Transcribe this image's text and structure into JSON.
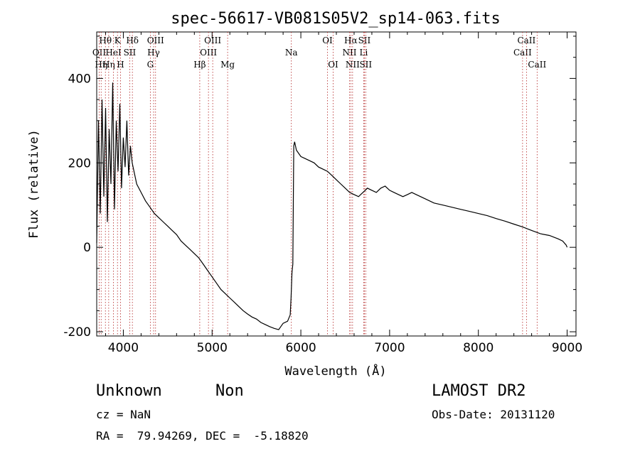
{
  "chart_data": {
    "type": "line",
    "title": "spec-56617-VB081S05V2_sp14-063.fits",
    "xlabel": "Wavelength (Å)",
    "ylabel": "Flux (relative)",
    "xlim": [
      3700,
      9100
    ],
    "ylim": [
      -210,
      510
    ],
    "xticks": [
      4000,
      5000,
      6000,
      7000,
      8000,
      9000
    ],
    "yticks": [
      -200,
      0,
      200,
      400
    ],
    "line_color": "#000000",
    "marker_color": "#b22222",
    "series": [
      {
        "x": [
          3700,
          3720,
          3740,
          3760,
          3780,
          3800,
          3820,
          3840,
          3860,
          3880,
          3900,
          3920,
          3940,
          3960,
          3980,
          4000,
          4020,
          4040,
          4060,
          4080,
          4100,
          4150,
          4200,
          4250,
          4300,
          4350,
          4400,
          4450,
          4500,
          4550,
          4600,
          4650,
          4700,
          4750,
          4800,
          4850,
          4900,
          4950,
          5000,
          5050,
          5100,
          5150,
          5200,
          5250,
          5300,
          5350,
          5400,
          5450,
          5500,
          5550,
          5600,
          5650,
          5700,
          5750,
          5800,
          5850,
          5880,
          5890,
          5900,
          5910,
          5920,
          5930,
          5950,
          6000,
          6050,
          6100,
          6150,
          6200,
          6250,
          6300,
          6350,
          6400,
          6450,
          6500,
          6550,
          6600,
          6650,
          6700,
          6750,
          6800,
          6850,
          6900,
          6950,
          7000,
          7050,
          7100,
          7150,
          7200,
          7250,
          7300,
          7400,
          7500,
          7600,
          7700,
          7800,
          7900,
          8000,
          8100,
          8200,
          8300,
          8400,
          8500,
          8600,
          8700,
          8800,
          8900,
          8950,
          8990,
          9000
        ],
        "y": [
          10,
          300,
          80,
          350,
          120,
          330,
          60,
          280,
          150,
          390,
          90,
          300,
          180,
          340,
          140,
          260,
          190,
          300,
          170,
          240,
          200,
          150,
          130,
          110,
          95,
          80,
          70,
          60,
          50,
          40,
          30,
          15,
          5,
          -5,
          -15,
          -25,
          -40,
          -55,
          -70,
          -85,
          -100,
          -110,
          -120,
          -130,
          -140,
          -150,
          -158,
          -165,
          -170,
          -178,
          -183,
          -188,
          -192,
          -195,
          -180,
          -175,
          -160,
          -120,
          -60,
          -40,
          240,
          250,
          230,
          215,
          210,
          205,
          200,
          190,
          185,
          180,
          170,
          160,
          150,
          140,
          130,
          125,
          120,
          130,
          140,
          135,
          130,
          140,
          145,
          135,
          130,
          125,
          120,
          125,
          130,
          125,
          115,
          105,
          100,
          95,
          90,
          85,
          80,
          75,
          68,
          62,
          55,
          48,
          40,
          32,
          28,
          20,
          15,
          5,
          0
        ]
      }
    ],
    "spectral_lines": [
      {
        "x": 3728,
        "label": "OII",
        "row": 1
      },
      {
        "x": 3750,
        "label": "Hη",
        "row": 2
      },
      {
        "x": 3798,
        "label": "Hθ",
        "row": 0
      },
      {
        "x": 3835,
        "label": "Hη",
        "row": 2
      },
      {
        "x": 3889,
        "label": "HeI",
        "row": 1
      },
      {
        "x": 3934,
        "label": "K",
        "row": 0
      },
      {
        "x": 3968,
        "label": "H",
        "row": 2
      },
      {
        "x": 4072,
        "label": "SII",
        "row": 1
      },
      {
        "x": 4102,
        "label": "Hδ",
        "row": 0
      },
      {
        "x": 4304,
        "label": "G",
        "row": 2
      },
      {
        "x": 4341,
        "label": "Hγ",
        "row": 1
      },
      {
        "x": 4363,
        "label": "OIII",
        "row": 0
      },
      {
        "x": 4861,
        "label": "Hβ",
        "row": 2
      },
      {
        "x": 4959,
        "label": "OIII",
        "row": 1
      },
      {
        "x": 5007,
        "label": "OIII",
        "row": 0
      },
      {
        "x": 5175,
        "label": "Mg",
        "row": 2
      },
      {
        "x": 5893,
        "label": "Na",
        "row": 1
      },
      {
        "x": 6300,
        "label": "OI",
        "row": 0
      },
      {
        "x": 6364,
        "label": "OI",
        "row": 2
      },
      {
        "x": 6548,
        "label": "NII",
        "row": 1
      },
      {
        "x": 6563,
        "label": "Hα",
        "row": 0
      },
      {
        "x": 6583,
        "label": "NII",
        "row": 2
      },
      {
        "x": 6708,
        "label": "Li",
        "row": 1
      },
      {
        "x": 6716,
        "label": "SII",
        "row": 0
      },
      {
        "x": 6731,
        "label": "SII",
        "row": 2
      },
      {
        "x": 8498,
        "label": "CaII",
        "row": 1
      },
      {
        "x": 8542,
        "label": "CaII",
        "row": 0
      },
      {
        "x": 8662,
        "label": "CaII",
        "row": 2
      }
    ]
  },
  "footer": {
    "object_class": "Unknown",
    "subclass": "Non",
    "survey": "LAMOST DR2",
    "redshift": "cz = NaN",
    "obs_date": "Obs-Date: 20131120",
    "coords": "RA =  79.94269, DEC =  -5.18820"
  }
}
